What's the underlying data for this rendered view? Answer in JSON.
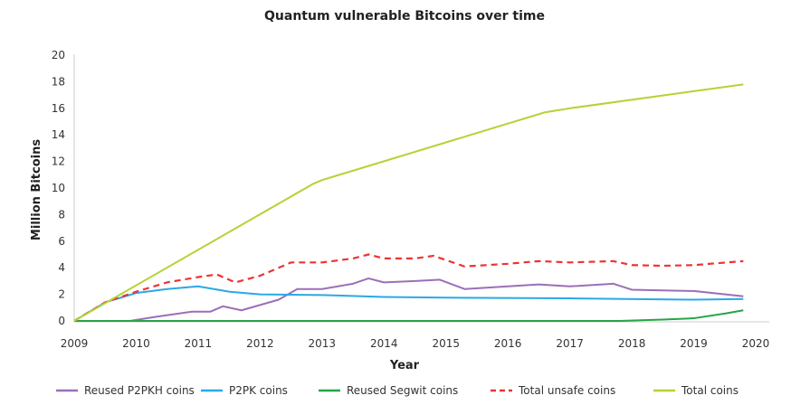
{
  "chart_data": {
    "type": "line",
    "title": "Quantum vulnerable Bitcoins over time",
    "xlabel": "Year",
    "ylabel": "Million Bitcoins",
    "xlim": [
      2009,
      2020
    ],
    "ylim": [
      0,
      20
    ],
    "xticks": [
      "2009",
      "2010",
      "2011",
      "2012",
      "2013",
      "2014",
      "2015",
      "2016",
      "2017",
      "2018",
      "2019",
      "2020"
    ],
    "yticks": [
      "0",
      "2",
      "4",
      "6",
      "8",
      "10",
      "12",
      "14",
      "16",
      "18",
      "20"
    ],
    "grid": false,
    "legend": "bottom",
    "series": [
      {
        "name": "Reused P2PKH coins",
        "color": "#9b6fb8",
        "dash": false,
        "points": [
          [
            2009.9,
            0
          ],
          [
            2010.3,
            0.3
          ],
          [
            2010.9,
            0.7
          ],
          [
            2011.2,
            0.7
          ],
          [
            2011.4,
            1.1
          ],
          [
            2011.7,
            0.8
          ],
          [
            2012,
            1.2
          ],
          [
            2012.3,
            1.6
          ],
          [
            2012.6,
            2.4
          ],
          [
            2013,
            2.4
          ],
          [
            2013.5,
            2.8
          ],
          [
            2013.75,
            3.2
          ],
          [
            2014,
            2.9
          ],
          [
            2014.5,
            3.0
          ],
          [
            2014.9,
            3.1
          ],
          [
            2015.3,
            2.4
          ],
          [
            2016,
            2.6
          ],
          [
            2016.5,
            2.75
          ],
          [
            2017,
            2.6
          ],
          [
            2017.7,
            2.8
          ],
          [
            2018,
            2.35
          ],
          [
            2018.5,
            2.3
          ],
          [
            2019,
            2.25
          ],
          [
            2019.8,
            1.85
          ]
        ]
      },
      {
        "name": "P2PK coins",
        "color": "#2ba8e6",
        "dash": false,
        "points": [
          [
            2009,
            0
          ],
          [
            2009.5,
            1.4
          ],
          [
            2010,
            2.1
          ],
          [
            2010.5,
            2.4
          ],
          [
            2011,
            2.6
          ],
          [
            2011.5,
            2.2
          ],
          [
            2012,
            2.0
          ],
          [
            2013,
            1.95
          ],
          [
            2014,
            1.8
          ],
          [
            2015,
            1.75
          ],
          [
            2017,
            1.7
          ],
          [
            2019,
            1.6
          ],
          [
            2019.8,
            1.65
          ]
        ]
      },
      {
        "name": "Reused Segwit coins",
        "color": "#27a547",
        "dash": false,
        "points": [
          [
            2009,
            0
          ],
          [
            2017.8,
            0
          ],
          [
            2018.5,
            0.1
          ],
          [
            2019,
            0.2
          ],
          [
            2019.5,
            0.55
          ],
          [
            2019.8,
            0.8
          ]
        ]
      },
      {
        "name": "Total unsafe coins",
        "color": "#ee3333",
        "dash": true,
        "points": [
          [
            2009,
            0
          ],
          [
            2009.5,
            1.4
          ],
          [
            2010,
            2.2
          ],
          [
            2010.5,
            2.9
          ],
          [
            2011,
            3.3
          ],
          [
            2011.3,
            3.5
          ],
          [
            2011.6,
            2.9
          ],
          [
            2012,
            3.4
          ],
          [
            2012.5,
            4.4
          ],
          [
            2013,
            4.4
          ],
          [
            2013.5,
            4.7
          ],
          [
            2013.75,
            5.0
          ],
          [
            2014,
            4.7
          ],
          [
            2014.5,
            4.7
          ],
          [
            2014.8,
            4.9
          ],
          [
            2015.3,
            4.1
          ],
          [
            2016,
            4.3
          ],
          [
            2016.5,
            4.5
          ],
          [
            2017,
            4.4
          ],
          [
            2017.7,
            4.5
          ],
          [
            2018,
            4.2
          ],
          [
            2018.5,
            4.15
          ],
          [
            2019,
            4.2
          ],
          [
            2019.8,
            4.5
          ]
        ]
      },
      {
        "name": "Total coins",
        "color": "#b5d234",
        "dash": false,
        "points": [
          [
            2009,
            0
          ],
          [
            2012.85,
            10.3
          ],
          [
            2013,
            10.6
          ],
          [
            2016.6,
            15.7
          ],
          [
            2017,
            16
          ],
          [
            2019.8,
            17.8
          ]
        ]
      }
    ]
  }
}
